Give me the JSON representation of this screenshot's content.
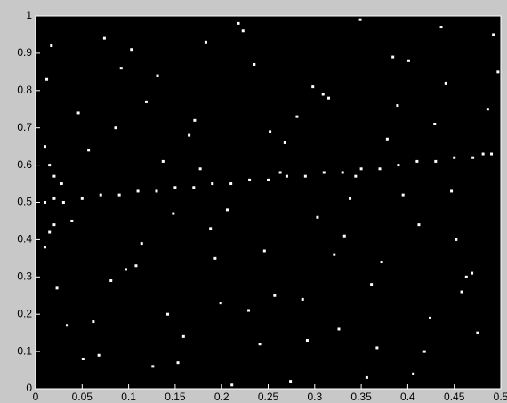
{
  "chart_data": {
    "type": "scatter",
    "background": "#000000",
    "color": "#ffffff",
    "xlim": [
      0,
      0.5
    ],
    "ylim": [
      0,
      1
    ],
    "xticks": [
      0,
      0.05,
      0.1,
      0.15,
      0.2,
      0.25,
      0.3,
      0.35,
      0.4,
      0.45,
      0.5
    ],
    "yticks": [
      0,
      0.1,
      0.2,
      0.3,
      0.4,
      0.5,
      0.6,
      0.7,
      0.8,
      0.9,
      1
    ],
    "x": [
      0.01,
      0.02,
      0.03,
      0.05,
      0.07,
      0.09,
      0.11,
      0.13,
      0.15,
      0.17,
      0.19,
      0.21,
      0.23,
      0.25,
      0.27,
      0.29,
      0.31,
      0.33,
      0.35,
      0.37,
      0.39,
      0.41,
      0.43,
      0.45,
      0.47,
      0.49,
      0.01,
      0.01,
      0.015,
      0.015,
      0.02,
      0.02,
      0.012,
      0.034,
      0.057,
      0.081,
      0.103,
      0.126,
      0.148,
      0.171,
      0.193,
      0.218,
      0.241,
      0.263,
      0.287,
      0.309,
      0.332,
      0.356,
      0.378,
      0.401,
      0.424,
      0.447,
      0.469,
      0.492,
      0.023,
      0.046,
      0.068,
      0.092,
      0.114,
      0.137,
      0.159,
      0.183,
      0.206,
      0.229,
      0.252,
      0.274,
      0.298,
      0.321,
      0.344,
      0.367,
      0.389,
      0.412,
      0.436,
      0.458,
      0.481,
      0.017,
      0.039,
      0.062,
      0.086,
      0.108,
      0.131,
      0.153,
      0.177,
      0.199,
      0.223,
      0.246,
      0.268,
      0.292,
      0.315,
      0.338,
      0.361,
      0.384,
      0.406,
      0.429,
      0.452,
      0.475,
      0.497,
      0.028,
      0.051,
      0.074,
      0.097,
      0.119,
      0.142,
      0.165,
      0.188,
      0.211,
      0.235,
      0.257,
      0.281,
      0.303,
      0.326,
      0.349,
      0.372,
      0.395,
      0.418,
      0.441,
      0.463,
      0.486
    ],
    "values": [
      0.5,
      0.51,
      0.5,
      0.51,
      0.52,
      0.52,
      0.53,
      0.53,
      0.54,
      0.54,
      0.55,
      0.55,
      0.56,
      0.56,
      0.57,
      0.57,
      0.58,
      0.58,
      0.59,
      0.59,
      0.6,
      0.61,
      0.61,
      0.62,
      0.62,
      0.63,
      0.65,
      0.38,
      0.6,
      0.42,
      0.57,
      0.44,
      0.83,
      0.17,
      0.64,
      0.29,
      0.91,
      0.06,
      0.47,
      0.72,
      0.35,
      0.98,
      0.12,
      0.58,
      0.24,
      0.79,
      0.41,
      0.03,
      0.67,
      0.88,
      0.19,
      0.53,
      0.31,
      0.95,
      0.27,
      0.74,
      0.09,
      0.86,
      0.39,
      0.61,
      0.14,
      0.93,
      0.48,
      0.21,
      0.69,
      0.02,
      0.81,
      0.36,
      0.57,
      0.11,
      0.76,
      0.44,
      0.97,
      0.26,
      0.63,
      0.92,
      0.45,
      0.18,
      0.7,
      0.33,
      0.84,
      0.07,
      0.59,
      0.23,
      0.96,
      0.37,
      0.66,
      0.13,
      0.78,
      0.51,
      0.28,
      0.89,
      0.04,
      0.71,
      0.4,
      0.15,
      0.85,
      0.55,
      0.08,
      0.94,
      0.32,
      0.77,
      0.2,
      0.68,
      0.43,
      0.01,
      0.87,
      0.25,
      0.73,
      0.46,
      0.16,
      0.99,
      0.34,
      0.52,
      0.1,
      0.82,
      0.3,
      0.75
    ]
  }
}
